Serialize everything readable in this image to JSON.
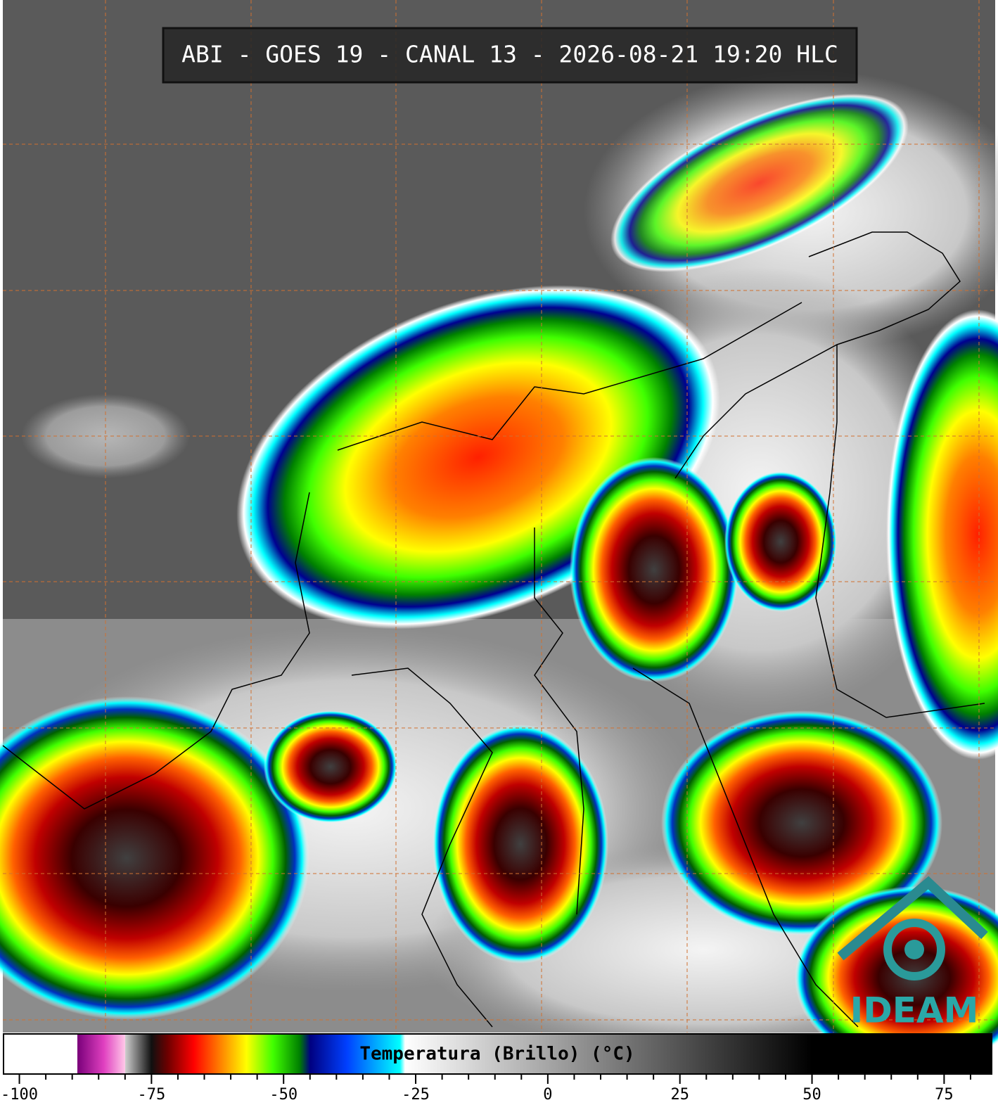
{
  "header": {
    "title": "ABI - GOES 19 - CANAL 13 - 2026-08-21 19:20 HLC"
  },
  "colorbar": {
    "label": "Temperatura (Brillo) (°C)",
    "lim": [
      -103,
      84
    ],
    "ticks": [
      -100,
      -75,
      -50,
      -25,
      0,
      25,
      50,
      75
    ],
    "minor_ticks": [
      -95,
      -90,
      -85,
      -80,
      -70,
      -65,
      -60,
      -55,
      -45,
      -40,
      -35,
      -30,
      -20,
      -15,
      -10,
      -5,
      5,
      10,
      15,
      20,
      30,
      35,
      40,
      45,
      55,
      60,
      65,
      70,
      80
    ],
    "stops": [
      [
        -103,
        "#ffffff"
      ],
      [
        -89,
        "#ffffff"
      ],
      [
        -89,
        "#7a007a"
      ],
      [
        -84,
        "#e040c0"
      ],
      [
        -80,
        "#ffc8e8"
      ],
      [
        -80,
        "#d0d0d0"
      ],
      [
        -75,
        "#101010"
      ],
      [
        -72,
        "#6b0000"
      ],
      [
        -67,
        "#ff0000"
      ],
      [
        -62,
        "#ff8000"
      ],
      [
        -57,
        "#ffff00"
      ],
      [
        -52,
        "#40ff00"
      ],
      [
        -47,
        "#008000"
      ],
      [
        -45,
        "#000080"
      ],
      [
        -38,
        "#0040ff"
      ],
      [
        -28,
        "#00ffff"
      ],
      [
        -27,
        "#ffffff"
      ],
      [
        50,
        "#000000"
      ],
      [
        84,
        "#000000"
      ]
    ]
  },
  "logo": {
    "text": "IDEAM"
  }
}
